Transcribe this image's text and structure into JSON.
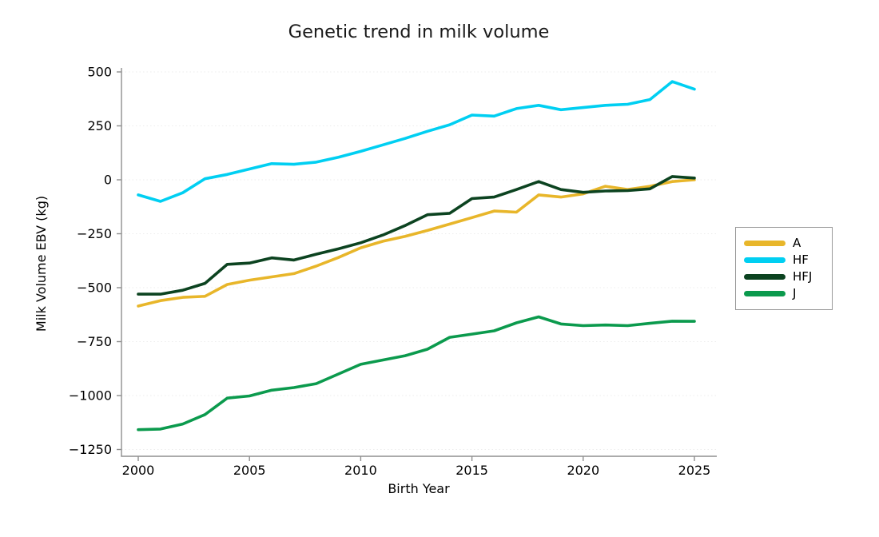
{
  "figure": {
    "title": "Genetic trend in milk volume"
  },
  "chart_data": {
    "type": "line",
    "title": "Genetic trend in milk volume",
    "xlabel": "Birth Year",
    "ylabel": "Milk Volume EBV (kg)",
    "xlim": [
      2000,
      2025
    ],
    "ylim": [
      -1250,
      500
    ],
    "xticks": [
      2000,
      2005,
      2010,
      2015,
      2020,
      2025
    ],
    "yticks": [
      500,
      250,
      0,
      -250,
      -500,
      -750,
      -1000,
      -1250
    ],
    "grid": "faint dotted horizontal gridlines at y ticks",
    "legend_position": "right of plot, boxed",
    "axis_color": "#8f8f8f",
    "x": [
      2000,
      2001,
      2002,
      2003,
      2004,
      2005,
      2006,
      2007,
      2008,
      2009,
      2010,
      2011,
      2012,
      2013,
      2014,
      2015,
      2016,
      2017,
      2018,
      2019,
      2020,
      2021,
      2022,
      2023,
      2024,
      2025
    ],
    "series": [
      {
        "name": "A",
        "color": "#e8b62a",
        "values": [
          -585,
          -560,
          -545,
          -540,
          -485,
          -465,
          -450,
          -435,
          -400,
          -360,
          -315,
          -285,
          -262,
          -235,
          -205,
          -175,
          -145,
          -150,
          -70,
          -80,
          -65,
          -30,
          -45,
          -30,
          -8,
          0
        ]
      },
      {
        "name": "HF",
        "color": "#00cff2",
        "values": [
          -70,
          -100,
          -60,
          5,
          25,
          50,
          75,
          72,
          82,
          105,
          132,
          162,
          192,
          225,
          255,
          300,
          295,
          330,
          345,
          325,
          335,
          345,
          350,
          372,
          455,
          420
        ]
      },
      {
        "name": "HFJ",
        "color": "#0c4320",
        "values": [
          -530,
          -530,
          -512,
          -480,
          -392,
          -386,
          -362,
          -372,
          -345,
          -320,
          -292,
          -256,
          -212,
          -162,
          -155,
          -87,
          -80,
          -45,
          -8,
          -45,
          -58,
          -52,
          -50,
          -42,
          15,
          8
        ]
      },
      {
        "name": "J",
        "color": "#0b9a4d",
        "values": [
          -1158,
          -1155,
          -1132,
          -1088,
          -1012,
          -1002,
          -975,
          -963,
          -945,
          -900,
          -855,
          -835,
          -815,
          -785,
          -730,
          -715,
          -700,
          -663,
          -635,
          -668,
          -676,
          -673,
          -676,
          -665,
          -655,
          -656
        ]
      }
    ]
  }
}
